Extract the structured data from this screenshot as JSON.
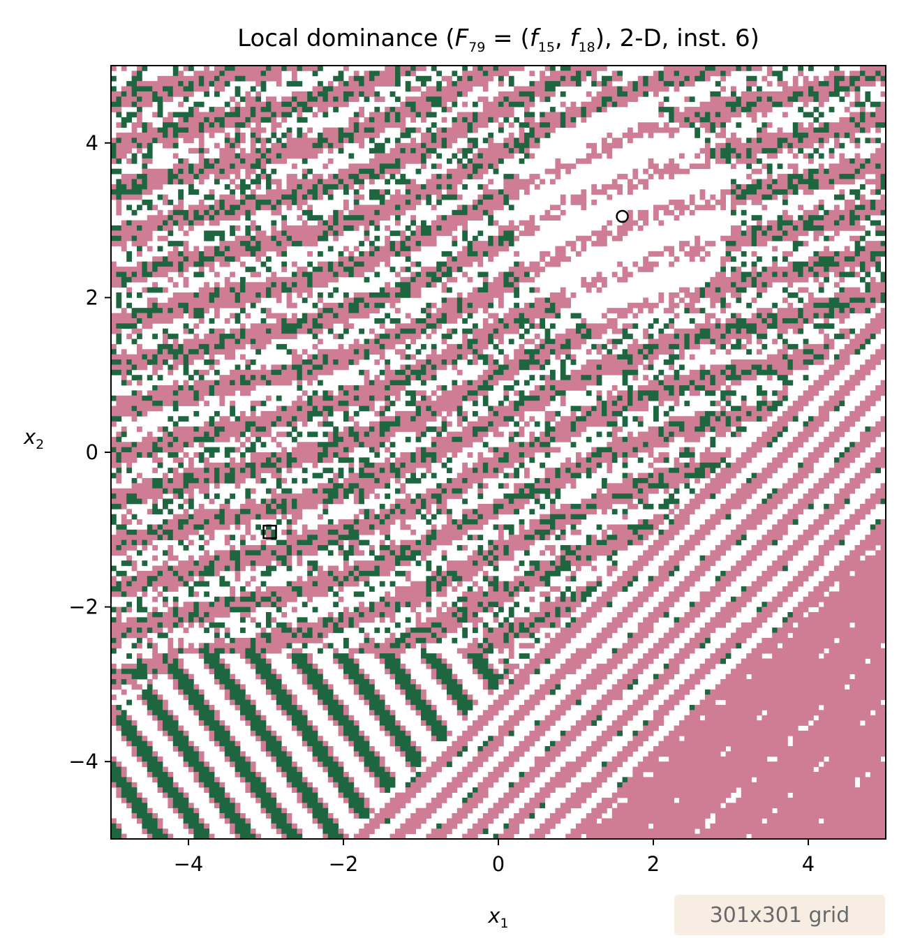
{
  "chart_data": {
    "type": "heatmap",
    "title_parts": {
      "prefix": "Local dominance (",
      "F": "F",
      "F_sub": "79",
      "eq": " = (",
      "f1": "f",
      "f1_sub": "15",
      "comma": ", ",
      "f2": "f",
      "f2_sub": "18",
      "suffix": "), 2-D, inst. 6)"
    },
    "xlabel": {
      "base": "x",
      "sub": "1"
    },
    "ylabel": {
      "base": "x",
      "sub": "2"
    },
    "xlim": [
      -5,
      5
    ],
    "ylim": [
      -5,
      5
    ],
    "xticks": [
      -4,
      -2,
      0,
      2,
      4
    ],
    "yticks": [
      -4,
      -2,
      0,
      2,
      4
    ],
    "xtick_labels": [
      "−4",
      "−2",
      "0",
      "2",
      "4"
    ],
    "ytick_labels": [
      "−4",
      "−2",
      "0",
      "2",
      "4"
    ],
    "grid": false,
    "grid_resolution": [
      301,
      301
    ],
    "categories": [
      "pink",
      "green",
      "white"
    ],
    "colors": {
      "pink": "#cf7d95",
      "green": "#1e6640",
      "white": "#ffffff"
    },
    "markers": [
      {
        "shape": "circle",
        "x": 1.6,
        "y": 3.05
      },
      {
        "shape": "square",
        "x": -2.95,
        "y": -1.03
      }
    ],
    "annotation": "301x301 grid"
  }
}
